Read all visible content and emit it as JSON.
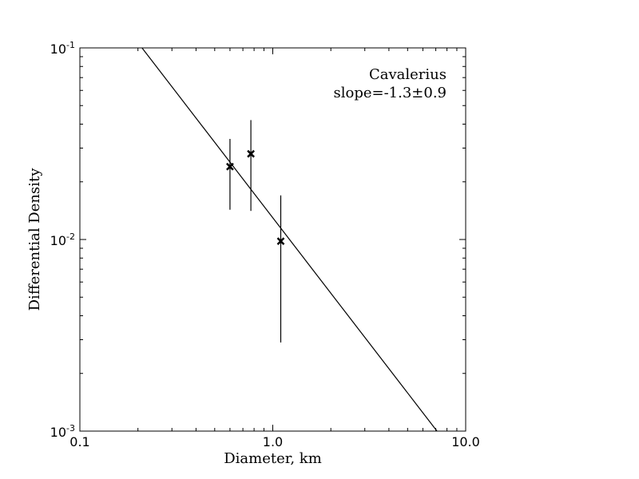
{
  "chart_data": {
    "type": "scatter",
    "xlabel": "Diameter, km",
    "ylabel": "Differential Density",
    "xscale": "log",
    "yscale": "log",
    "xlim": [
      0.1,
      10.0
    ],
    "ylim": [
      0.001,
      0.1
    ],
    "grid": false,
    "x_ticks": [
      {
        "value": 0.1,
        "label": "0.1"
      },
      {
        "value": 1.0,
        "label": "1.0"
      },
      {
        "value": 10.0,
        "label": "10.0"
      }
    ],
    "y_ticks": [
      {
        "value": 0.1,
        "base": "10",
        "exp": "-1"
      },
      {
        "value": 0.01,
        "base": "10",
        "exp": "-2"
      },
      {
        "value": 0.001,
        "base": "10",
        "exp": "-3"
      }
    ],
    "points": [
      {
        "x": 0.6,
        "y": 0.024,
        "y_low": 0.0143,
        "y_high": 0.0335
      },
      {
        "x": 0.77,
        "y": 0.028,
        "y_low": 0.0141,
        "y_high": 0.042
      },
      {
        "x": 1.1,
        "y": 0.0098,
        "y_low": 0.0029,
        "y_high": 0.017
      }
    ],
    "fit_line": {
      "slope": -1.3,
      "points": [
        [
          0.21,
          0.1
        ],
        [
          7.1,
          0.001
        ]
      ]
    },
    "annotations": [
      "Cavalerius",
      "slope=-1.3±0.9"
    ],
    "marker_color": "#000000",
    "line_color": "#000000"
  }
}
